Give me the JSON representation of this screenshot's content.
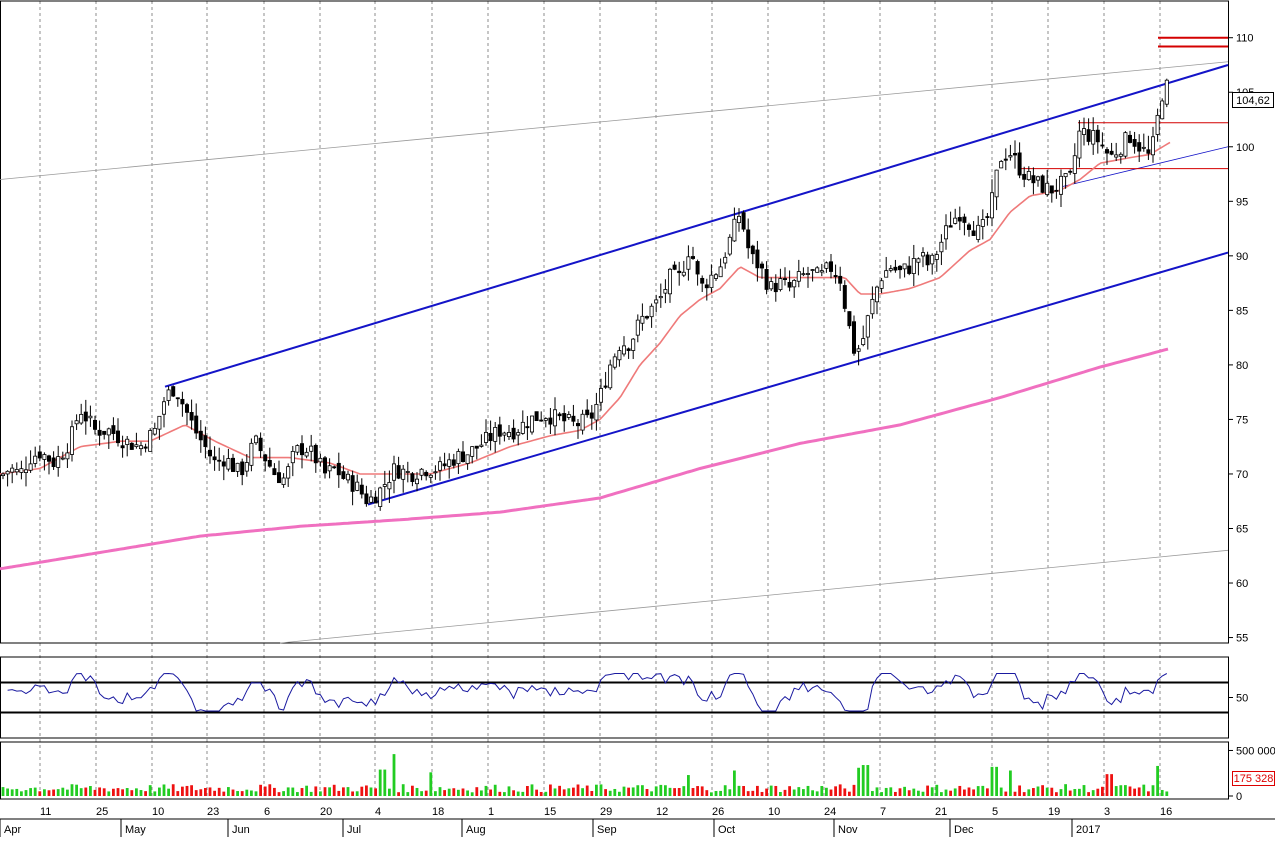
{
  "chart_data": {
    "type": "candlestick",
    "price_axis": {
      "ticks": [
        55,
        60,
        65,
        70,
        75,
        80,
        85,
        90,
        95,
        100,
        105,
        110
      ],
      "range": [
        54.5,
        113
      ]
    },
    "last_price_label": "104,62",
    "x_day_ticks": [
      "11",
      "25",
      "10",
      "23",
      "6",
      "20",
      "4",
      "18",
      "1",
      "15",
      "29",
      "12",
      "26",
      "10",
      "24",
      "7",
      "21",
      "5",
      "19",
      "3",
      "16"
    ],
    "x_month_labels": [
      "Apr",
      "May",
      "Jun",
      "Jul",
      "Aug",
      "Sep",
      "Oct",
      "Nov",
      "Dec",
      "2017"
    ],
    "series_shape": [
      [
        0,
        69.8
      ],
      [
        10,
        70.5
      ],
      [
        20,
        70
      ],
      [
        30,
        71.5
      ],
      [
        40,
        72
      ],
      [
        55,
        71
      ],
      [
        70,
        73
      ],
      [
        80,
        76
      ],
      [
        95,
        74
      ],
      [
        110,
        74
      ],
      [
        125,
        73
      ],
      [
        140,
        72.5
      ],
      [
        155,
        74
      ],
      [
        165,
        77
      ],
      [
        175,
        78
      ],
      [
        185,
        76
      ],
      [
        195,
        74
      ],
      [
        205,
        72.5
      ],
      [
        215,
        71
      ],
      [
        225,
        71.5
      ],
      [
        240,
        70
      ],
      [
        255,
        73
      ],
      [
        265,
        71.5
      ],
      [
        275,
        70
      ],
      [
        285,
        69.5
      ],
      [
        295,
        72
      ],
      [
        305,
        72.5
      ],
      [
        315,
        71.5
      ],
      [
        325,
        70
      ],
      [
        335,
        70.5
      ],
      [
        345,
        69.5
      ],
      [
        355,
        69
      ],
      [
        368,
        67.5
      ],
      [
        380,
        68.5
      ],
      [
        395,
        70.5
      ],
      [
        410,
        70
      ],
      [
        425,
        70.5
      ],
      [
        440,
        70.5
      ],
      [
        455,
        71.5
      ],
      [
        470,
        72
      ],
      [
        485,
        73
      ],
      [
        500,
        74
      ],
      [
        515,
        74
      ],
      [
        530,
        75
      ],
      [
        545,
        75.5
      ],
      [
        560,
        75
      ],
      [
        575,
        74.5
      ],
      [
        590,
        75
      ],
      [
        600,
        77
      ],
      [
        610,
        80
      ],
      [
        620,
        82
      ],
      [
        630,
        82
      ],
      [
        640,
        84
      ],
      [
        650,
        85
      ],
      [
        660,
        86
      ],
      [
        670,
        88
      ],
      [
        680,
        88
      ],
      [
        690,
        91
      ],
      [
        700,
        87
      ],
      [
        710,
        88
      ],
      [
        720,
        89
      ],
      [
        730,
        91.5
      ],
      [
        740,
        94
      ],
      [
        750,
        90
      ],
      [
        760,
        89
      ],
      [
        770,
        87
      ],
      [
        780,
        87.5
      ],
      [
        790,
        87
      ],
      [
        800,
        88
      ],
      [
        810,
        88.5
      ],
      [
        820,
        88
      ],
      [
        830,
        89
      ],
      [
        840,
        88
      ],
      [
        848,
        84
      ],
      [
        855,
        81
      ],
      [
        862,
        82
      ],
      [
        870,
        85
      ],
      [
        880,
        88
      ],
      [
        890,
        89
      ],
      [
        900,
        88.5
      ],
      [
        910,
        89
      ],
      [
        920,
        90
      ],
      [
        930,
        89
      ],
      [
        940,
        91
      ],
      [
        950,
        93
      ],
      [
        960,
        94
      ],
      [
        970,
        93
      ],
      [
        980,
        92
      ],
      [
        990,
        94
      ],
      [
        1000,
        99
      ],
      [
        1010,
        99.5
      ],
      [
        1020,
        98
      ],
      [
        1030,
        97
      ],
      [
        1040,
        96.5
      ],
      [
        1050,
        96
      ],
      [
        1060,
        96.5
      ],
      [
        1070,
        97
      ],
      [
        1080,
        101.5
      ],
      [
        1090,
        101
      ],
      [
        1100,
        100.5
      ],
      [
        1110,
        99
      ],
      [
        1120,
        100
      ],
      [
        1130,
        101
      ],
      [
        1140,
        100
      ],
      [
        1150,
        99
      ],
      [
        1155,
        101
      ],
      [
        1160,
        104
      ],
      [
        1165,
        106
      ],
      [
        1170,
        104.6
      ]
    ],
    "ma_short_shape": [
      [
        0,
        70
      ],
      [
        40,
        70.5
      ],
      [
        80,
        72.5
      ],
      [
        120,
        73
      ],
      [
        150,
        73
      ],
      [
        185,
        74.5
      ],
      [
        215,
        73
      ],
      [
        250,
        71.5
      ],
      [
        290,
        71.5
      ],
      [
        330,
        71
      ],
      [
        360,
        70
      ],
      [
        390,
        70
      ],
      [
        430,
        70
      ],
      [
        470,
        71
      ],
      [
        510,
        72.5
      ],
      [
        550,
        73.5
      ],
      [
        580,
        74
      ],
      [
        600,
        75
      ],
      [
        620,
        77
      ],
      [
        640,
        80
      ],
      [
        660,
        82
      ],
      [
        680,
        84.5
      ],
      [
        700,
        86
      ],
      [
        720,
        87
      ],
      [
        740,
        89
      ],
      [
        760,
        88
      ],
      [
        790,
        88
      ],
      [
        820,
        88
      ],
      [
        845,
        88
      ],
      [
        860,
        86.5
      ],
      [
        880,
        86.5
      ],
      [
        910,
        87
      ],
      [
        940,
        88
      ],
      [
        970,
        90.5
      ],
      [
        990,
        91.5
      ],
      [
        1010,
        94
      ],
      [
        1030,
        95.5
      ],
      [
        1060,
        96
      ],
      [
        1080,
        97
      ],
      [
        1100,
        98.5
      ],
      [
        1130,
        99
      ],
      [
        1150,
        99.3
      ],
      [
        1170,
        100.4
      ]
    ],
    "ma_long_shape": [
      [
        0,
        61.3
      ],
      [
        100,
        62.8
      ],
      [
        200,
        64.3
      ],
      [
        300,
        65.2
      ],
      [
        400,
        65.8
      ],
      [
        500,
        66.5
      ],
      [
        600,
        67.8
      ],
      [
        700,
        70.5
      ],
      [
        800,
        72.8
      ],
      [
        900,
        74.5
      ],
      [
        1000,
        77
      ],
      [
        1100,
        79.8
      ],
      [
        1170,
        81.5
      ]
    ],
    "trendlines": [
      {
        "name": "upper-channel",
        "from": [
          165,
          78
        ],
        "to": [
          1228,
          107.5
        ]
      },
      {
        "name": "lower-channel",
        "from": [
          368,
          67.2
        ],
        "to": [
          1228,
          90.3
        ]
      },
      {
        "name": "long-upper",
        "from": [
          0,
          97
        ],
        "to": [
          1228,
          107.8
        ]
      },
      {
        "name": "long-lower",
        "from": [
          280,
          54.5
        ],
        "to": [
          1228,
          63
        ]
      },
      {
        "name": "short-support",
        "from": [
          1060,
          96.3
        ],
        "to": [
          1228,
          100
        ]
      }
    ],
    "resistance_lines": [
      {
        "value": 110,
        "from": 1158,
        "to": 1228,
        "color": "#d40000"
      },
      {
        "value": 109.2,
        "from": 1158,
        "to": 1228,
        "color": "#d40000"
      },
      {
        "value": 102.2,
        "from": 1078,
        "to": 1228,
        "color": "#d40000"
      },
      {
        "value": 98,
        "from": 1020,
        "to": 1228,
        "color": "#d40000"
      }
    ],
    "oscillator": {
      "range": [
        0,
        100
      ],
      "upper_level": 70,
      "lower_level": 30,
      "tick_label": "50"
    },
    "volume": {
      "ticks": [
        "500 000",
        "0"
      ],
      "last_label": "175 328",
      "spikes": [
        [
          395,
          460000
        ],
        [
          383,
          290000
        ],
        [
          430,
          260000
        ],
        [
          688,
          230000
        ],
        [
          735,
          280000
        ],
        [
          858,
          310000
        ],
        [
          865,
          340000
        ],
        [
          995,
          320000
        ],
        [
          1010,
          280000
        ],
        [
          1110,
          240000
        ],
        [
          1158,
          330000
        ]
      ]
    },
    "colors": {
      "up": "#22cc22",
      "down": "#ee1111",
      "channel": "#1414c8",
      "ma_short": "#ef7a7a",
      "ma_long": "#f070c0",
      "resistance": "#d40000",
      "oscillator": "#1a1aa0"
    }
  }
}
